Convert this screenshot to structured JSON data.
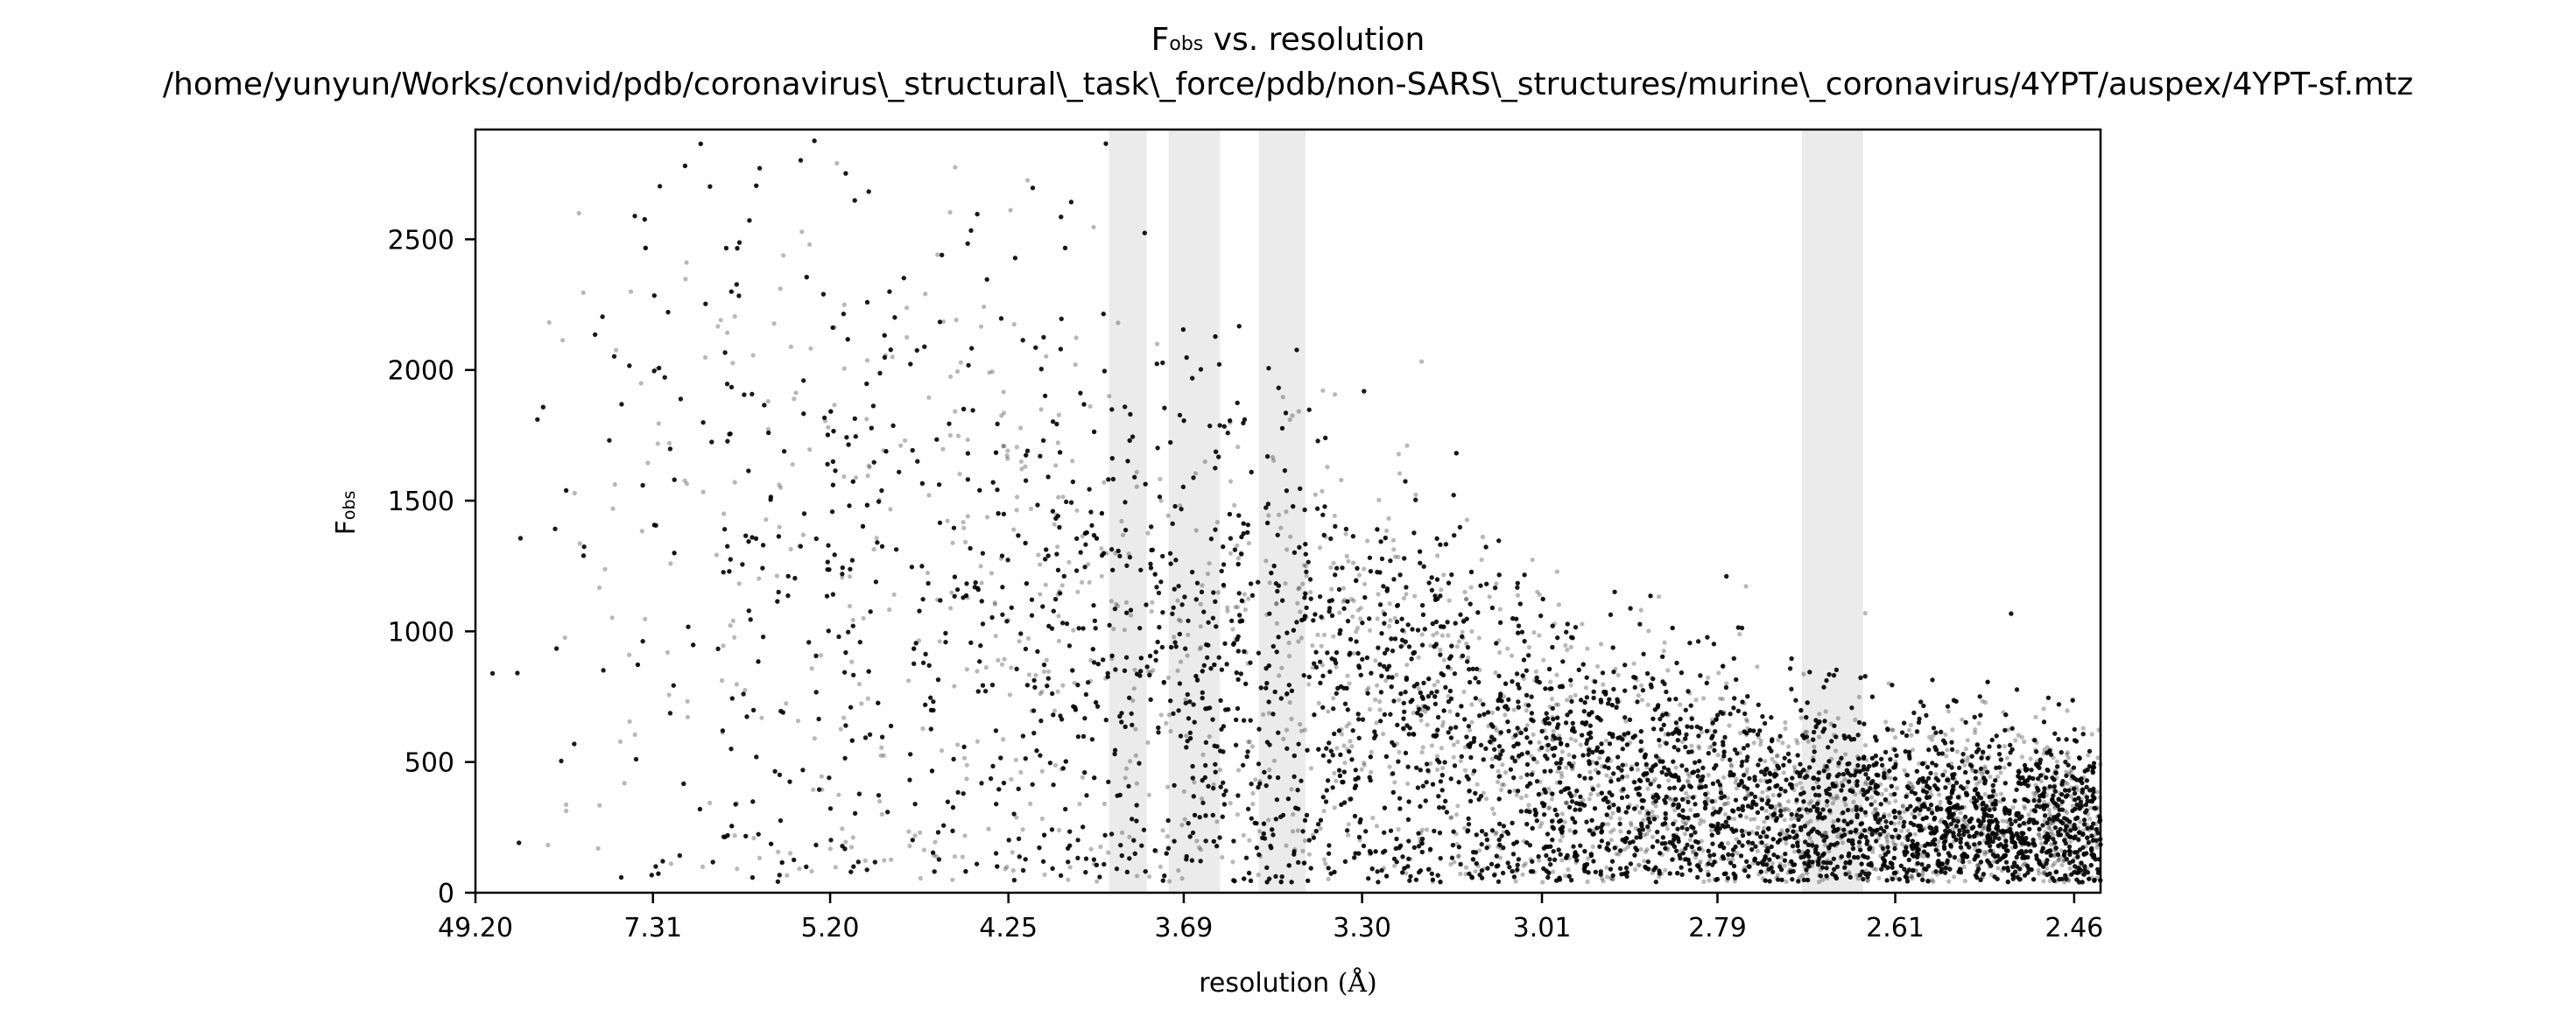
{
  "chart_data": {
    "type": "scatter",
    "title": {
      "line1_main": "F",
      "line1_sub": "obs",
      "line1_rest": " vs. resolution",
      "line2": "/home/yunyun/Works/convid/pdb/coronavirus\\_structural\\_task\\_force/pdb/non-SARS\\_structures/murine\\_coronavirus/4YPT/auspex/4YPT-sf.mtz"
    },
    "xlabel": {
      "main": "resolution ",
      "unit": "(Å)"
    },
    "ylabel": {
      "main": "F",
      "sub": "obs"
    },
    "x_scale": "inverse-square (1/d²)",
    "xlim": [
      49.2,
      2.44
    ],
    "ylim": [
      0,
      2920
    ],
    "x_ticks": [
      "49.20",
      "7.31",
      "5.20",
      "4.25",
      "3.69",
      "3.30",
      "3.01",
      "2.79",
      "2.61",
      "2.46"
    ],
    "y_ticks": [
      "0",
      "500",
      "1000",
      "1500",
      "2000",
      "2500"
    ],
    "grid": false,
    "legend": "none",
    "ice_ring_bands_resolution": [
      [
        3.9,
        3.79
      ],
      [
        3.73,
        3.6
      ],
      [
        3.51,
        3.41
      ],
      [
        2.7,
        2.64
      ]
    ],
    "series": [
      {
        "point_count_approx": 34000,
        "color": "#000000",
        "opacity": 0.28,
        "density_profile_resolution": [
          [
            7.31,
            1250
          ],
          [
            5.2,
            1200
          ],
          [
            4.25,
            1050
          ],
          [
            3.69,
            900
          ],
          [
            3.3,
            700
          ],
          [
            3.01,
            450
          ],
          [
            2.79,
            350
          ],
          [
            2.61,
            280
          ],
          [
            2.46,
            260
          ]
        ],
        "samples": [
          [
            9.5,
            2600
          ],
          [
            7.8,
            2300
          ],
          [
            7.0,
            1720
          ],
          [
            6.2,
            1450
          ],
          [
            5.6,
            1550
          ],
          [
            5.1,
            2250
          ],
          [
            4.8,
            2050
          ],
          [
            4.5,
            1750
          ],
          [
            4.2,
            1650
          ],
          [
            3.9,
            1900
          ],
          [
            3.75,
            1500
          ],
          [
            3.55,
            1300
          ],
          [
            3.4,
            1150
          ],
          [
            3.2,
            900
          ],
          [
            3.05,
            700
          ],
          [
            2.9,
            600
          ],
          [
            2.8,
            450
          ],
          [
            2.7,
            400
          ],
          [
            2.62,
            300
          ],
          [
            2.55,
            280
          ],
          [
            2.48,
            250
          ]
        ]
      }
    ],
    "colors": {
      "points": "#000000",
      "ice_band": "#ebebeb",
      "axes": "#000000"
    }
  }
}
